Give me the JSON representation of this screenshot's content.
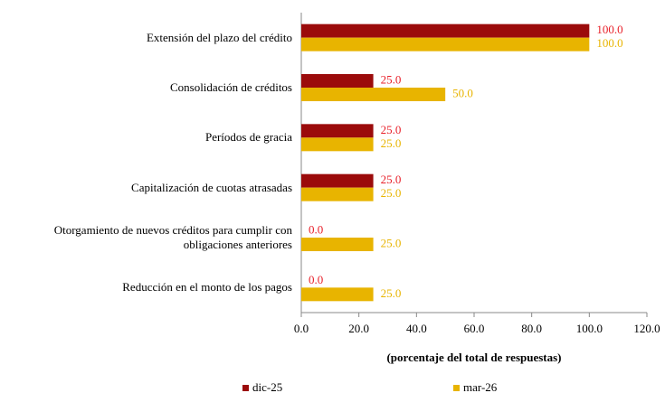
{
  "chart_data": {
    "type": "hbar",
    "x_label": "(porcentaje del total de respuestas)",
    "categories": [
      "Extensión del plazo del crédito",
      "Consolidación de créditos",
      "Períodos de gracia",
      "Capitalización de cuotas atrasadas",
      "Otorgamiento de nuevos créditos para cumplir con obligaciones anteriores",
      "Reducción en el monto de los pagos"
    ],
    "series": [
      {
        "name": "dic-25",
        "color": "#9b0b0b",
        "label_color": "#e8202a",
        "values": [
          100,
          25,
          25,
          25,
          0,
          0
        ],
        "value_labels": [
          "100.0",
          "25.0",
          "25.0",
          "25.0",
          "0.0",
          "0.0"
        ]
      },
      {
        "name": "mar-26",
        "color": "#e8b400",
        "label_color": "#e8b400",
        "values": [
          100,
          50,
          25,
          25,
          25,
          25
        ],
        "value_labels": [
          "100.0",
          "50.0",
          "25.0",
          "25.0",
          "25.0",
          "25.0"
        ]
      }
    ],
    "xlim": [
      0,
      120
    ],
    "xticks": [
      {
        "value": 0,
        "label": "0.0"
      },
      {
        "value": 20,
        "label": "20.0"
      },
      {
        "value": 40,
        "label": "40.0"
      },
      {
        "value": 60,
        "label": "60.0"
      },
      {
        "value": 80,
        "label": "80.0"
      },
      {
        "value": 100,
        "label": "100.0"
      },
      {
        "value": 120,
        "label": "120.0"
      }
    ],
    "legend": "bottom"
  }
}
